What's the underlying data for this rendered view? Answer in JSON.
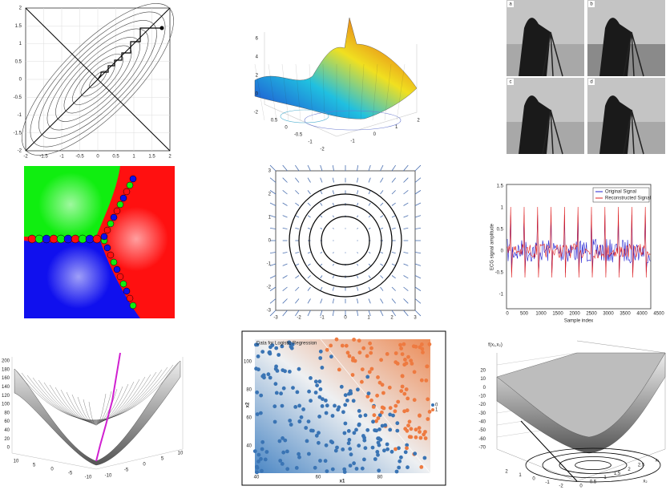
{
  "contour_plot": {
    "x_ticks": [
      "-2",
      "-1.5",
      "-1",
      "-0.5",
      "0",
      "0.5",
      "1",
      "1.5",
      "2"
    ],
    "y_ticks": [
      "2",
      "1.5",
      "1",
      "0.5",
      "0",
      "-0.5",
      "-1",
      "-1.5",
      "-2"
    ]
  },
  "surface_plot": {
    "z_ticks": [
      "6",
      "4",
      "2",
      "0",
      "-2"
    ],
    "front_ticks": [
      "0.5",
      "0",
      "-0.5",
      "-1",
      "-2"
    ],
    "right_ticks": [
      "-1",
      "0",
      "1",
      "2"
    ]
  },
  "image_grid": {
    "labels": [
      "a",
      "b",
      "c",
      "d"
    ]
  },
  "vector_field": {
    "x_ticks": [
      "-3",
      "-2",
      "-1",
      "0",
      "1",
      "2",
      "3"
    ],
    "y_ticks": [
      "3",
      "2",
      "1",
      "0",
      "-1",
      "-2",
      "-3"
    ]
  },
  "ecg_plot": {
    "legend": [
      "Original Signal",
      "Reconstructed Signal"
    ],
    "y_label": "ECG signal amplitude",
    "x_label": "Sample index",
    "x_ticks": [
      "0",
      "500",
      "1000",
      "1500",
      "2000",
      "2500",
      "3000",
      "3500",
      "4000",
      "4500"
    ],
    "y_ticks": [
      "1.5",
      "1",
      "0.5",
      "0",
      "-0.5",
      "-1"
    ]
  },
  "bowl_plot": {
    "z_ticks": [
      "200",
      "180",
      "160",
      "140",
      "120",
      "100",
      "80",
      "60",
      "40",
      "20",
      "0"
    ],
    "left_ticks": [
      "10",
      "5",
      "0",
      "-5",
      "-10"
    ],
    "right_ticks": [
      "-10",
      "-5",
      "0",
      "5",
      "10"
    ]
  },
  "logistic_plot": {
    "title": "Data for Logistic Regression",
    "x_label": "x1",
    "y_label": "x2",
    "x_ticks": [
      "40",
      "60",
      "80"
    ],
    "y_ticks": [
      "100",
      "80",
      "60",
      "40"
    ],
    "legend": [
      "0",
      "1"
    ]
  },
  "function_plot": {
    "z_label": "f(x₁,x₂)",
    "x1_label": "x₁",
    "x2_label": "x₂",
    "z_ticks": [
      "20",
      "10",
      "0",
      "-10",
      "-20",
      "-30",
      "-40",
      "-50",
      "-60",
      "-70"
    ],
    "x2_ticks": [
      "2",
      "1",
      "0",
      "-1",
      "-2"
    ],
    "x1_ticks": [
      "0",
      "0.5",
      "1",
      "1.5",
      "2",
      "2.5"
    ]
  }
}
